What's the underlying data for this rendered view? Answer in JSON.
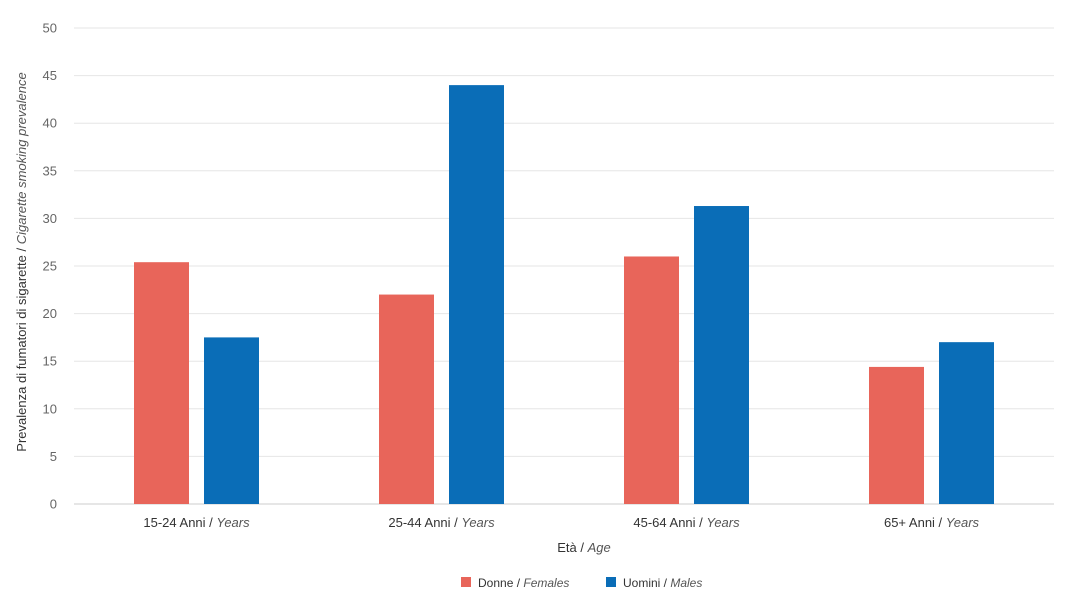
{
  "colors": {
    "females": "#E8655A",
    "males": "#0A6DB7",
    "grid": "#E6E6E6",
    "axis_line": "#CCCCCC"
  },
  "chart_data": {
    "type": "bar",
    "categories": [
      {
        "main": "15-24 Anni / ",
        "italic": "Years"
      },
      {
        "main": "25-44 Anni / ",
        "italic": "Years"
      },
      {
        "main": "45-64 Anni / ",
        "italic": "Years"
      },
      {
        "main": "65+ Anni / ",
        "italic": "Years"
      }
    ],
    "series": [
      {
        "name": "Donne / ",
        "name_italic": "Females",
        "color": "#E8655A",
        "values": [
          25.4,
          22.0,
          26.0,
          14.4
        ]
      },
      {
        "name": "Uomini / ",
        "name_italic": "Males",
        "color": "#0A6DB7",
        "values": [
          17.5,
          44.0,
          31.3,
          17.0
        ]
      }
    ],
    "xlabel": {
      "main": "Età / ",
      "italic": "Age"
    },
    "ylabel": {
      "main": "Prevalenza di fumatori di sigarette / ",
      "italic": "Cigarette smoking prevalence"
    },
    "ylim": [
      0,
      50
    ],
    "yticks": [
      "0",
      "5",
      "10",
      "15",
      "20",
      "25",
      "30",
      "35",
      "40",
      "45",
      "50"
    ],
    "grid": true,
    "legend_position": "bottom-center"
  }
}
